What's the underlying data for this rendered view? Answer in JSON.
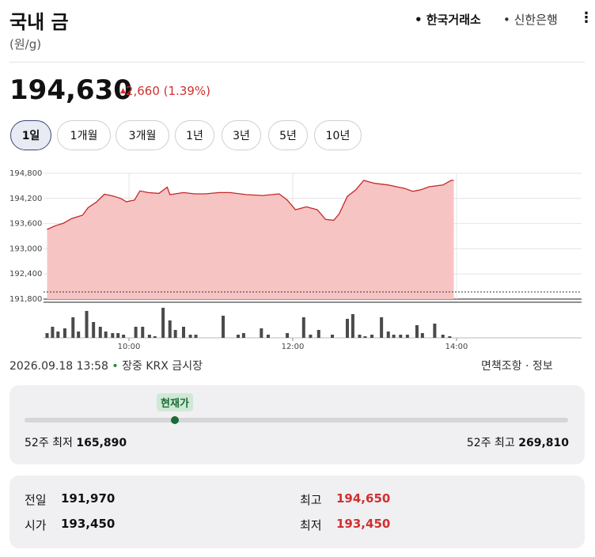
{
  "header": {
    "title": "국내 금",
    "unit": "(원/g)",
    "sources": [
      "한국거래소",
      "신한은행"
    ]
  },
  "quote": {
    "price": {
      "value": 194630,
      "label": "194,630"
    },
    "change": "2,660",
    "change_pct": "(1.39%)"
  },
  "periods": [
    "1일",
    "1개월",
    "3개월",
    "1년",
    "3년",
    "5년",
    "10년"
  ],
  "chart_data": {
    "type": "area",
    "color": "#c62828",
    "fill": "#f7c4c4",
    "x": [
      "09:00",
      "09:06",
      "09:12",
      "09:18",
      "09:26",
      "09:30",
      "09:36",
      "09:42",
      "09:48",
      "09:54",
      "09:58",
      "10:04",
      "10:08",
      "10:14",
      "10:22",
      "10:28",
      "10:30",
      "10:40",
      "10:48",
      "10:56",
      "11:06",
      "11:14",
      "11:26",
      "11:38",
      "11:50",
      "11:56",
      "12:02",
      "12:10",
      "12:18",
      "12:24",
      "12:30",
      "12:34",
      "12:40",
      "12:46",
      "12:52",
      "13:00",
      "13:10",
      "13:16",
      "13:22",
      "13:28",
      "13:34",
      "13:40",
      "13:50",
      "13:56",
      "13:58"
    ],
    "values": [
      193460,
      193550,
      193610,
      193720,
      193800,
      193980,
      194110,
      194300,
      194260,
      194200,
      194120,
      194160,
      194380,
      194340,
      194320,
      194470,
      194290,
      194340,
      194310,
      194310,
      194340,
      194340,
      194290,
      194270,
      194310,
      194160,
      193930,
      194000,
      193930,
      193700,
      193680,
      193830,
      194250,
      194400,
      194630,
      194560,
      194520,
      194480,
      194440,
      194370,
      194410,
      194480,
      194520,
      194630,
      194630
    ],
    "xlim": [
      "09:00",
      "15:30"
    ],
    "xticks": [
      "10:00",
      "12:00",
      "14:00"
    ],
    "ylim": [
      191800,
      194800
    ],
    "yticks": [
      {
        "value": 194800,
        "label": "194,800"
      },
      {
        "value": 194200,
        "label": "194,200"
      },
      {
        "value": 193600,
        "label": "193,600"
      },
      {
        "value": 193000,
        "label": "193,000"
      },
      {
        "value": 192400,
        "label": "192,400"
      },
      {
        "value": 191800,
        "label": "191,800"
      }
    ],
    "baseline": 191970,
    "grid": true,
    "volume": {
      "color": "#4a4a4a",
      "x": [
        "09:00",
        "09:04",
        "09:08",
        "09:13",
        "09:19",
        "09:23",
        "09:29",
        "09:34",
        "09:39",
        "09:43",
        "09:48",
        "09:52",
        "09:56",
        "10:05",
        "10:10",
        "10:15",
        "10:19",
        "10:25",
        "10:30",
        "10:34",
        "10:40",
        "10:45",
        "10:49",
        "11:09",
        "11:20",
        "11:24",
        "11:37",
        "11:42",
        "11:56",
        "12:08",
        "12:13",
        "12:19",
        "12:29",
        "12:40",
        "12:44",
        "12:49",
        "12:53",
        "12:58",
        "13:05",
        "13:10",
        "13:14",
        "13:19",
        "13:24",
        "13:31",
        "13:35",
        "13:44",
        "13:50",
        "13:55"
      ],
      "values": [
        6,
        14,
        8,
        12,
        26,
        8,
        34,
        20,
        14,
        8,
        6,
        6,
        4,
        14,
        14,
        4,
        2,
        38,
        22,
        10,
        14,
        4,
        4,
        28,
        4,
        6,
        12,
        4,
        6,
        26,
        4,
        10,
        4,
        24,
        30,
        4,
        2,
        4,
        26,
        8,
        4,
        4,
        4,
        16,
        6,
        18,
        4,
        2
      ]
    }
  },
  "status": {
    "datetime": "2026.09.18 13:58",
    "session": "장중",
    "market": "KRX 금시장",
    "links": [
      "면책조항",
      "정보"
    ]
  },
  "range": {
    "current_label": "현재가",
    "low_label": "52주 최저",
    "low": {
      "value": 165890,
      "label": "165,890"
    },
    "high_label": "52주 최고",
    "high": {
      "value": 269810,
      "label": "269,810"
    }
  },
  "info": {
    "rows": [
      [
        [
          "전일",
          "191,970"
        ],
        [
          "최고",
          "194,650"
        ]
      ],
      [
        [
          "시가",
          "193,450"
        ],
        [
          "최저",
          "193,450"
        ]
      ]
    ]
  }
}
